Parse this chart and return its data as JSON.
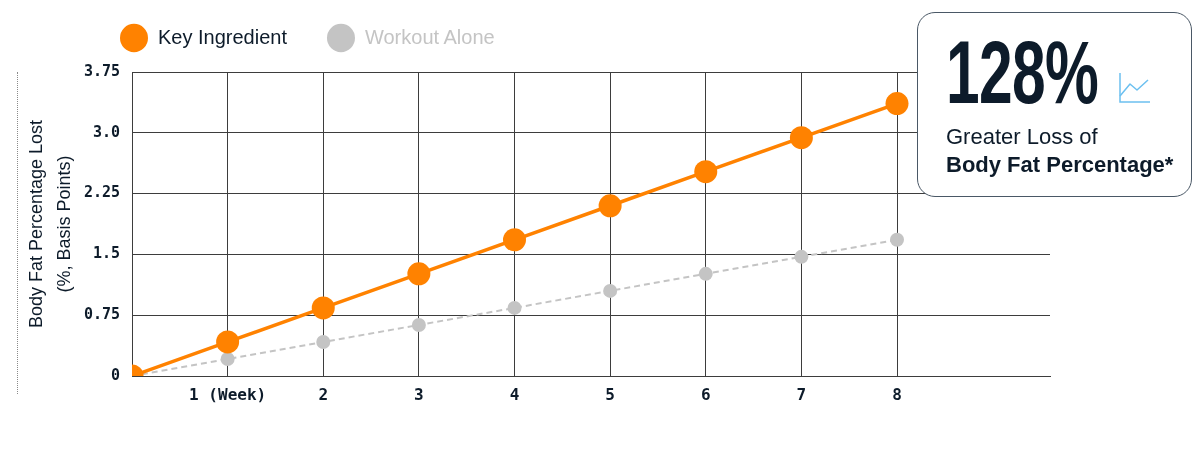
{
  "chart_data": [
    {
      "type": "line",
      "ylabel": "Body Fat Percentage Lost\n(%, Basis Points)",
      "x": [
        0,
        1,
        2,
        3,
        4,
        5,
        6,
        7,
        8
      ],
      "series": [
        {
          "name": "Key Ingredient",
          "color": "#ff8200",
          "line_style": "solid",
          "values": [
            0,
            0.42,
            0.84,
            1.26,
            1.68,
            2.1,
            2.52,
            2.94,
            3.36
          ]
        },
        {
          "name": "Workout Alone",
          "color": "#c4c4c4",
          "line_style": "dashed",
          "values": [
            0,
            0.21,
            0.42,
            0.63,
            0.84,
            1.05,
            1.26,
            1.47,
            1.68
          ]
        }
      ],
      "xlim": [
        0,
        9.6
      ],
      "xticks": [
        {
          "value": 1,
          "label": "1 (Week)"
        },
        2,
        3,
        4,
        5,
        6,
        7,
        8
      ],
      "ylim": [
        0,
        3.75
      ],
      "yticks": [
        0,
        0.75,
        1.5,
        2.25,
        {
          "value": 3,
          "label": "3.0"
        },
        3.75
      ],
      "grid": true,
      "legend": "top left",
      "marker": "circle"
    },
    {
      "type": "other",
      "annotations": [
        "128%",
        "Greater Loss of",
        "Body Fat Percentage*"
      ]
    }
  ]
}
